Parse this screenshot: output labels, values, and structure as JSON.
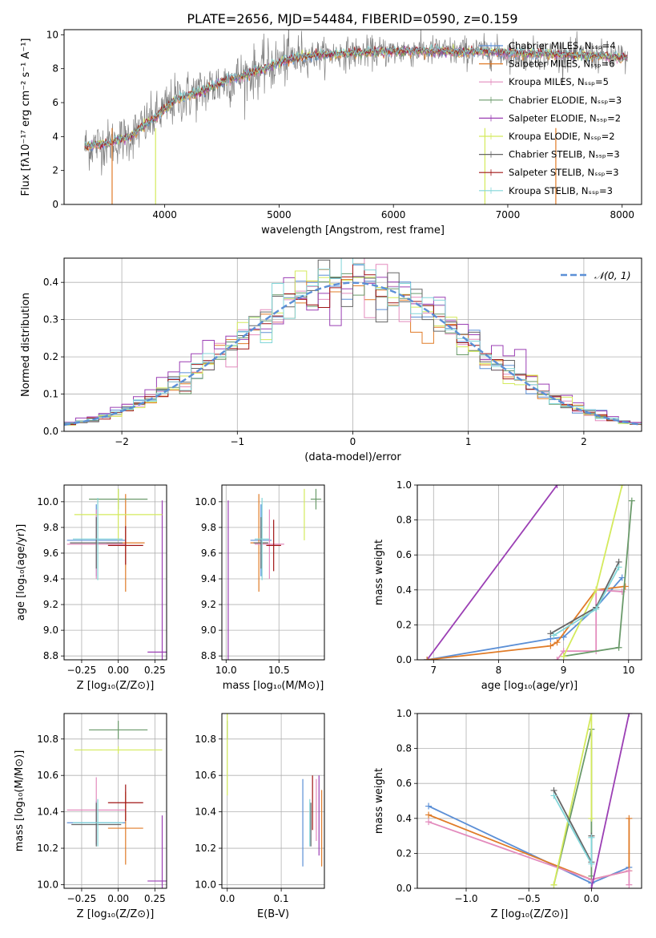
{
  "colors": {
    "grid": "#b0b0b0",
    "gauss": "#5b8fd6",
    "models": [
      "#5b8fd6",
      "#e07b27",
      "#e38bbd",
      "#6a9a6a",
      "#9b3fb4",
      "#d4ea5c",
      "#666666",
      "#a01515",
      "#82d6d9"
    ]
  },
  "chart_data": [
    {
      "id": "spectrum",
      "type": "line",
      "title": "PLATE=2656, MJD=54484, FIBERID=0590, z=0.159",
      "xlabel": "wavelength [Angstrom, rest frame]",
      "ylabel": "Flux [fλ10⁻¹⁷ erg cm⁻² s⁻¹ A⁻¹]",
      "xlim": [
        3120,
        8170
      ],
      "ylim": [
        0,
        10.3
      ],
      "xticks": [
        4000,
        5000,
        6000,
        7000,
        8000
      ],
      "yticks": [
        0,
        2,
        4,
        6,
        8,
        10
      ],
      "legend": {
        "placement": "top-right",
        "entries": [
          "Chabrier MILES, Nₛₛₚ=4",
          "Salpeter MILES, Nₛₛₚ=6",
          "Kroupa MILES, Nₛₛₚ=5",
          "Chabrier ELODIE, Nₛₛₚ=3",
          "Salpeter ELODIE, Nₛₛₚ=2",
          "Kroupa ELODIE, Nₛₛₚ=2",
          "Chabrier STELIB, Nₛₛₚ=3",
          "Salpeter STELIB, Nₛₛₚ=3",
          "Kroupa STELIB, Nₛₛₚ=3"
        ]
      },
      "continuum": [
        [
          3300,
          3.4
        ],
        [
          3500,
          3.6
        ],
        [
          3700,
          4.0
        ],
        [
          3850,
          4.8
        ],
        [
          3950,
          5.3
        ],
        [
          4100,
          6.2
        ],
        [
          4300,
          6.6
        ],
        [
          4500,
          7.2
        ],
        [
          4700,
          7.6
        ],
        [
          4900,
          8.1
        ],
        [
          5100,
          8.6
        ],
        [
          5300,
          8.8
        ],
        [
          5600,
          8.9
        ],
        [
          5900,
          9.0
        ],
        [
          6200,
          9.05
        ],
        [
          6500,
          9.0
        ],
        [
          6800,
          9.0
        ],
        [
          7100,
          8.9
        ],
        [
          7400,
          8.85
        ],
        [
          7900,
          8.7
        ],
        [
          8050,
          8.6
        ]
      ]
    },
    {
      "id": "residuals",
      "type": "line",
      "xlabel": "(data-model)/error",
      "ylabel": "Normed distribution",
      "xlim": [
        -2.5,
        2.5
      ],
      "ylim": [
        0,
        0.465
      ],
      "xticks": [
        -2,
        -1,
        0,
        1,
        2
      ],
      "yticks": [
        0.0,
        0.1,
        0.2,
        0.3,
        0.4
      ],
      "legend": {
        "placement": "top-right",
        "entries": [
          "𝒩(0, 1)"
        ]
      }
    },
    {
      "id": "age-vs-Z",
      "type": "scatter",
      "xlabel": "Z [log₁₀(Z/Z⊙)]",
      "ylabel": "age  [log₁₀(age/yr)]",
      "xlim": [
        -0.37,
        0.33
      ],
      "ylim": [
        8.77,
        10.13
      ],
      "xticks": [
        -0.25,
        0.0,
        0.25
      ],
      "yticks": [
        8.8,
        9.0,
        9.2,
        9.4,
        9.6,
        9.8,
        10.0
      ],
      "points": [
        {
          "x": -0.15,
          "y": 9.7,
          "xerr": 0.2,
          "yerr": 0.28,
          "c": 0
        },
        {
          "x": 0.05,
          "y": 9.68,
          "xerr": 0.13,
          "yerr": 0.38,
          "c": 1
        },
        {
          "x": -0.15,
          "y": 9.67,
          "xerr": 0.2,
          "yerr": 0.27,
          "c": 2
        },
        {
          "x": 0.0,
          "y": 10.02,
          "xerr": 0.2,
          "yerr": 0.08,
          "c": 3
        },
        {
          "x": 0.3,
          "y": 8.83,
          "xerr": 0.1,
          "yerr": 1.18,
          "c": 4
        },
        {
          "x": 0.0,
          "y": 9.9,
          "xerr": 0.3,
          "yerr": 0.2,
          "c": 5
        },
        {
          "x": -0.15,
          "y": 9.68,
          "xerr": 0.18,
          "yerr": 0.2,
          "c": 6
        },
        {
          "x": 0.05,
          "y": 9.66,
          "xerr": 0.12,
          "yerr": 0.15,
          "c": 7
        },
        {
          "x": -0.14,
          "y": 9.71,
          "xerr": 0.17,
          "yerr": 0.32,
          "c": 8
        }
      ]
    },
    {
      "id": "age-vs-mass",
      "type": "scatter",
      "xlabel": "mass [log₁₀(M/M⊙)]",
      "ylabel": "",
      "xlim": [
        9.96,
        10.93
      ],
      "ylim": [
        8.77,
        10.13
      ],
      "xticks": [
        10.0,
        10.5
      ],
      "yticks": [
        8.8,
        9.0,
        9.2,
        9.4,
        9.6,
        9.8,
        10.0
      ],
      "points": [
        {
          "x": 10.33,
          "y": 9.7,
          "xerr": 0.1,
          "yerr": 0.28,
          "c": 0
        },
        {
          "x": 10.31,
          "y": 9.68,
          "xerr": 0.08,
          "yerr": 0.38,
          "c": 1
        },
        {
          "x": 10.41,
          "y": 9.67,
          "xerr": 0.14,
          "yerr": 0.27,
          "c": 2
        },
        {
          "x": 10.85,
          "y": 10.02,
          "xerr": 0.05,
          "yerr": 0.08,
          "c": 3
        },
        {
          "x": 10.02,
          "y": 8.83,
          "xerr": 0.0,
          "yerr": 1.18,
          "c": 4
        },
        {
          "x": 10.74,
          "y": 9.9,
          "xerr": 0.0,
          "yerr": 0.2,
          "c": 5
        },
        {
          "x": 10.33,
          "y": 9.68,
          "xerr": 0.07,
          "yerr": 0.2,
          "c": 6
        },
        {
          "x": 10.45,
          "y": 9.66,
          "xerr": 0.07,
          "yerr": 0.2,
          "c": 7
        },
        {
          "x": 10.34,
          "y": 9.71,
          "xerr": 0.07,
          "yerr": 0.32,
          "c": 8
        }
      ]
    },
    {
      "id": "weight-vs-age",
      "type": "line",
      "xlabel": "age  [log₁₀(age/yr)]",
      "ylabel": "mass weight",
      "xlim": [
        6.75,
        10.2
      ],
      "ylim": [
        0,
        1.0
      ],
      "xticks": [
        7,
        8,
        9,
        10
      ],
      "yticks": [
        0.0,
        0.2,
        0.4,
        0.6,
        0.8,
        1.0
      ],
      "series": [
        {
          "c": 4,
          "x": [
            6.9,
            8.9
          ],
          "y": [
            0.0,
            1.0
          ]
        },
        {
          "c": 0,
          "x": [
            6.9,
            8.8,
            9.0,
            9.5,
            9.9
          ],
          "y": [
            0.0,
            0.12,
            0.13,
            0.3,
            0.47
          ]
        },
        {
          "c": 1,
          "x": [
            6.9,
            8.8,
            8.9,
            9.5,
            9.95
          ],
          "y": [
            0.0,
            0.08,
            0.1,
            0.4,
            0.42
          ]
        },
        {
          "c": 2,
          "x": [
            8.9,
            9.0,
            9.5,
            9.5,
            9.9
          ],
          "y": [
            0.0,
            0.05,
            0.05,
            0.4,
            0.39
          ]
        },
        {
          "c": 3,
          "x": [
            9.0,
            9.85,
            10.05
          ],
          "y": [
            0.02,
            0.07,
            0.91
          ]
        },
        {
          "c": 5,
          "x": [
            9.0,
            9.5,
            9.9
          ],
          "y": [
            0.02,
            0.4,
            1.0
          ]
        },
        {
          "c": 6,
          "x": [
            8.8,
            9.5,
            9.85
          ],
          "y": [
            0.15,
            0.3,
            0.56
          ]
        },
        {
          "c": 8,
          "x": [
            8.85,
            9.5,
            9.85
          ],
          "y": [
            0.14,
            0.29,
            0.53
          ]
        }
      ]
    },
    {
      "id": "mass-vs-Z",
      "type": "scatter",
      "xlabel": "Z [log₁₀(Z/Z⊙)]",
      "ylabel": "mass [log₁₀(M/M⊙)]",
      "xlim": [
        -0.37,
        0.33
      ],
      "ylim": [
        9.98,
        10.94
      ],
      "xticks": [
        -0.25,
        0.0,
        0.25
      ],
      "yticks": [
        10.0,
        10.2,
        10.4,
        10.6,
        10.8
      ],
      "points": [
        {
          "x": -0.15,
          "y": 10.34,
          "xerr": 0.2,
          "yerr": 0.12,
          "c": 0
        },
        {
          "x": 0.05,
          "y": 10.31,
          "xerr": 0.12,
          "yerr": 0.2,
          "c": 1
        },
        {
          "x": -0.15,
          "y": 10.41,
          "xerr": 0.2,
          "yerr": 0.18,
          "c": 2
        },
        {
          "x": 0.0,
          "y": 10.85,
          "xerr": 0.2,
          "yerr": 0.05,
          "c": 3
        },
        {
          "x": 0.3,
          "y": 10.02,
          "xerr": 0.1,
          "yerr": 0.36,
          "c": 4
        },
        {
          "x": 0.0,
          "y": 10.74,
          "xerr": 0.3,
          "yerr": 0.02,
          "c": 5
        },
        {
          "x": -0.15,
          "y": 10.33,
          "xerr": 0.17,
          "yerr": 0.12,
          "c": 6
        },
        {
          "x": 0.05,
          "y": 10.45,
          "xerr": 0.12,
          "yerr": 0.1,
          "c": 7
        },
        {
          "x": -0.14,
          "y": 10.34,
          "xerr": 0.17,
          "yerr": 0.13,
          "c": 8
        }
      ]
    },
    {
      "id": "mass-vs-ebv",
      "type": "scatter",
      "xlabel": "E(B-V)",
      "ylabel": "",
      "xlim": [
        -0.01,
        0.18
      ],
      "ylim": [
        9.98,
        10.94
      ],
      "xticks": [
        0.0,
        0.1
      ],
      "yticks": [
        10.0,
        10.2,
        10.4,
        10.6,
        10.8
      ],
      "points": [
        {
          "x": 0.14,
          "y": 10.34,
          "xerr": 0,
          "yerr": 0.24,
          "c": 0
        },
        {
          "x": 0.175,
          "y": 10.31,
          "xerr": 0,
          "yerr": 0.21,
          "c": 1
        },
        {
          "x": 0.165,
          "y": 10.41,
          "xerr": 0,
          "yerr": 0.17,
          "c": 2
        },
        {
          "x": 0.0,
          "y": 10.85,
          "xerr": 0,
          "yerr": 0.05,
          "c": 3
        },
        {
          "x": 0.17,
          "y": 10.38,
          "xerr": 0,
          "yerr": 0.22,
          "c": 4
        },
        {
          "x": 0.0,
          "y": 10.74,
          "xerr": 0,
          "yerr": 0.25,
          "c": 5
        },
        {
          "x": 0.155,
          "y": 10.33,
          "xerr": 0,
          "yerr": 0.12,
          "c": 6
        },
        {
          "x": 0.158,
          "y": 10.45,
          "xerr": 0,
          "yerr": 0.15,
          "c": 7
        },
        {
          "x": 0.153,
          "y": 10.34,
          "xerr": 0,
          "yerr": 0.13,
          "c": 8
        }
      ]
    },
    {
      "id": "weight-vs-Z",
      "type": "line",
      "xlabel": "Z [log₁₀(Z/Z⊙)]",
      "ylabel": "mass weight",
      "xlim": [
        -1.39,
        0.4
      ],
      "ylim": [
        0,
        1.0
      ],
      "xticks": [
        -1.0,
        -0.5,
        0.0
      ],
      "yticks": [
        0.0,
        0.2,
        0.4,
        0.6,
        0.8,
        1.0
      ],
      "series": [
        {
          "c": 0,
          "x": [
            -1.3,
            0.0,
            0.3
          ],
          "y": [
            0.47,
            0.03,
            0.12
          ]
        },
        {
          "c": 1,
          "x": [
            -1.3,
            0.0,
            0.3,
            0.3
          ],
          "y": [
            0.42,
            0.05,
            0.1,
            0.4
          ]
        },
        {
          "c": 2,
          "x": [
            -1.3,
            0.0,
            0.3,
            0.3
          ],
          "y": [
            0.38,
            0.05,
            0.1,
            0.02
          ]
        },
        {
          "c": 3,
          "x": [
            -0.3,
            0.0,
            0.0
          ],
          "y": [
            0.02,
            0.91,
            0.07
          ]
        },
        {
          "c": 4,
          "x": [
            0.0,
            0.3
          ],
          "y": [
            0.0,
            1.0
          ]
        },
        {
          "c": 5,
          "x": [
            -0.3,
            0.0,
            0.0
          ],
          "y": [
            0.02,
            1.0,
            0.4
          ]
        },
        {
          "c": 6,
          "x": [
            -0.3,
            0.0,
            0.0
          ],
          "y": [
            0.56,
            0.15,
            0.3
          ]
        },
        {
          "c": 8,
          "x": [
            -0.3,
            0.0,
            0.0
          ],
          "y": [
            0.53,
            0.14,
            0.29
          ]
        }
      ]
    }
  ]
}
